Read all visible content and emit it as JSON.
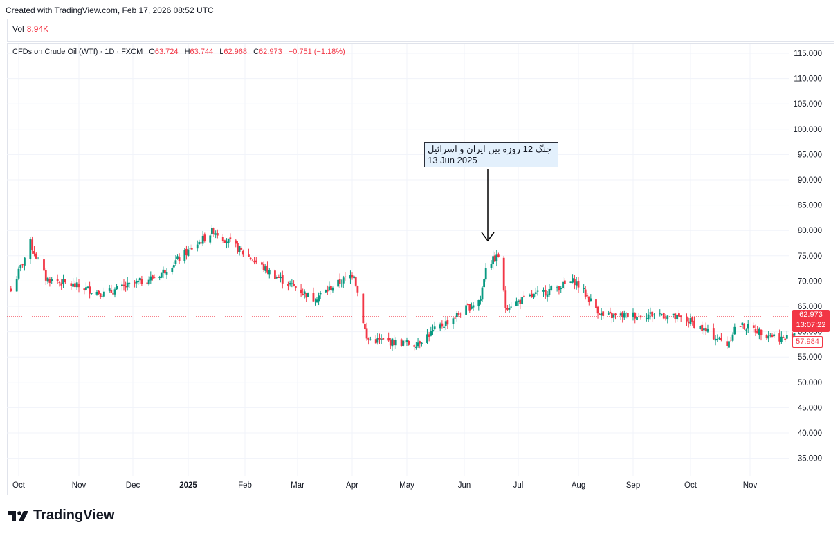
{
  "header": {
    "created": "Created with TradingView.com, Feb 17, 2026 08:52 UTC"
  },
  "volume": {
    "label": "Vol",
    "value": "8.94K"
  },
  "legend": {
    "symbol": "CFDs on Crude Oil (WTI) · 1D · FXCM",
    "open_label": "O",
    "open": "63.724",
    "high_label": "H",
    "high": "63.744",
    "low_label": "L",
    "low": "62.968",
    "close_label": "C",
    "close": "62.973",
    "change": "−0.751 (−1.18%)"
  },
  "annotation": {
    "line1": "جنگ 12 روزه بین ایران و اسرائیل",
    "line2": "13 Jun 2025"
  },
  "price_tag": {
    "price": "62.973",
    "countdown": "13:07:22",
    "low_price": "57.984"
  },
  "brand": {
    "name": "TradingView"
  },
  "colors": {
    "up": "#089981",
    "down": "#f23645",
    "grid": "#f0f3fa",
    "annotation_bg": "#e3f0fc"
  },
  "chart_data": {
    "type": "candlestick",
    "y_ticks": [
      "115.000",
      "110.000",
      "105.000",
      "100.000",
      "95.000",
      "90.000",
      "85.000",
      "80.000",
      "75.000",
      "70.000",
      "65.000",
      "60.000",
      "55.000",
      "50.000",
      "45.000",
      "40.000",
      "35.000"
    ],
    "x_ticks": [
      "Oct",
      "Nov",
      "Dec",
      "2025",
      "Feb",
      "Mar",
      "Apr",
      "May",
      "Jun",
      "Jul",
      "Aug",
      "Sep",
      "Oct",
      "Nov"
    ],
    "ylim": [
      31,
      117
    ],
    "current_price": 62.973,
    "annotation_date": "2025-06-13",
    "key_points": [
      {
        "date": "2024-09-27",
        "close": 68.0
      },
      {
        "date": "2024-10-07",
        "close": 77.5
      },
      {
        "date": "2024-10-15",
        "close": 70.5
      },
      {
        "date": "2024-11-15",
        "close": 67.5
      },
      {
        "date": "2024-12-15",
        "close": 71.0
      },
      {
        "date": "2025-01-15",
        "close": 80.0
      },
      {
        "date": "2025-02-15",
        "close": 71.5
      },
      {
        "date": "2025-03-10",
        "close": 66.5
      },
      {
        "date": "2025-04-02",
        "close": 71.5
      },
      {
        "date": "2025-04-09",
        "close": 58.5
      },
      {
        "date": "2025-05-05",
        "close": 57.5
      },
      {
        "date": "2025-06-10",
        "close": 66.5
      },
      {
        "date": "2025-06-13",
        "close": 73.0
      },
      {
        "date": "2025-06-20",
        "close": 75.0
      },
      {
        "date": "2025-06-24",
        "close": 65.0
      },
      {
        "date": "2025-07-30",
        "close": 70.0
      },
      {
        "date": "2025-08-15",
        "close": 63.0
      },
      {
        "date": "2025-09-15",
        "close": 63.5
      },
      {
        "date": "2025-10-01",
        "close": 62.0
      },
      {
        "date": "2025-10-20",
        "close": 57.5
      },
      {
        "date": "2025-10-25",
        "close": 61.5
      },
      {
        "date": "2025-11-20",
        "close": 58.5
      },
      {
        "date": "2025-11-25",
        "close": 60.0
      }
    ]
  }
}
